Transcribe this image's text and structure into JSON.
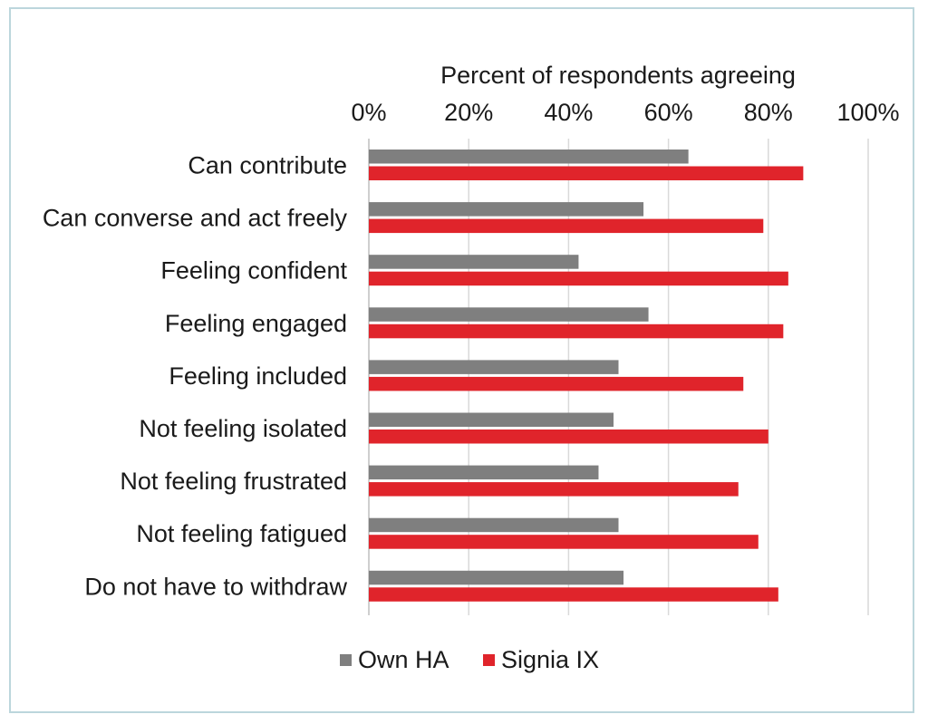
{
  "chart_data": {
    "type": "bar",
    "orientation": "horizontal",
    "title": "Percent of respondents agreeing",
    "xlim": [
      0,
      100
    ],
    "x_ticks": [
      "0%",
      "20%",
      "40%",
      "60%",
      "80%",
      "100%"
    ],
    "x_tick_values": [
      0,
      20,
      40,
      60,
      80,
      100
    ],
    "grid": true,
    "legend_position": "bottom",
    "categories": [
      "Can contribute",
      "Can converse and act freely",
      "Feeling confident",
      "Feeling engaged",
      "Feeling included",
      "Not feeling isolated",
      "Not feeling frustrated",
      "Not feeling fatigued",
      "Do not have to withdraw"
    ],
    "series": [
      {
        "name": "Own HA",
        "color": "#7f7f7f",
        "values": [
          64,
          55,
          42,
          56,
          50,
          49,
          46,
          50,
          51
        ]
      },
      {
        "name": "Signia IX",
        "color": "#e0242b",
        "values": [
          87,
          79,
          84,
          83,
          75,
          80,
          74,
          78,
          82
        ]
      }
    ]
  }
}
